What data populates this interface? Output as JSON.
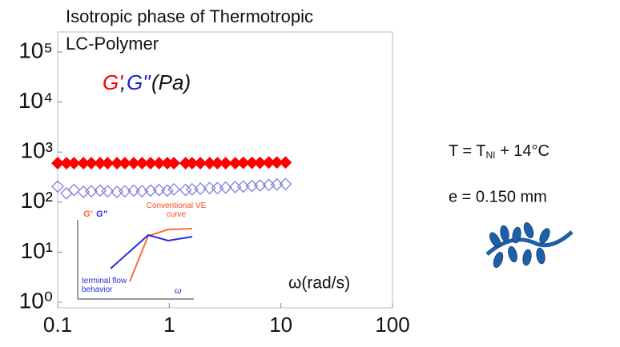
{
  "chart_data": {
    "type": "scatter",
    "title": "Isotropic phase of Thermotropic LC-Polymer",
    "ylabel": "(Pa)",
    "ylabel_separator": ",",
    "xlabel": "ω(rad/s)",
    "x_log": true,
    "y_log": true,
    "xlim": [
      0.1,
      100
    ],
    "ylim": [
      1,
      100000
    ],
    "xticks": [
      0.1,
      1,
      10,
      100
    ],
    "yticks": [
      {
        "value": 1,
        "label": "10⁰"
      },
      {
        "value": 10,
        "label": "10¹"
      },
      {
        "value": 100,
        "label": "10²"
      },
      {
        "value": 1000,
        "label": "10³"
      },
      {
        "value": 10000,
        "label": "10⁴"
      },
      {
        "value": 100000,
        "label": "10⁵"
      }
    ],
    "x": [
      0.1,
      0.12,
      0.14,
      0.17,
      0.2,
      0.24,
      0.28,
      0.34,
      0.4,
      0.48,
      0.57,
      0.68,
      0.81,
      0.96,
      1.1,
      1.4,
      1.6,
      1.9,
      2.3,
      2.7,
      3.2,
      3.9,
      4.6,
      5.5,
      6.5,
      7.8,
      9.2,
      11
    ],
    "series": [
      {
        "name": "G'",
        "color": "#ff0000",
        "filled": true,
        "values": [
          600,
          600,
          600,
          600,
          600,
          600,
          600,
          600,
          600,
          600,
          600,
          600,
          600,
          600,
          600,
          600,
          600,
          600,
          600,
          600,
          600,
          600,
          610,
          610,
          610,
          620,
          620,
          620
        ]
      },
      {
        "name": "G\"",
        "color": "#8080e0",
        "label_color": "#1f1fd0",
        "filled": false,
        "values": [
          205,
          150,
          175,
          160,
          165,
          170,
          165,
          160,
          165,
          170,
          165,
          170,
          175,
          170,
          180,
          175,
          180,
          185,
          190,
          190,
          195,
          200,
          205,
          210,
          215,
          220,
          225,
          230
        ]
      }
    ],
    "inset": {
      "series_labels": [
        "G'",
        "G\""
      ],
      "curve_label": "Conventional VE curve",
      "region_label": "terminal flow behavior",
      "xlabel": "ω"
    },
    "annotations": {
      "temperature": [
        "T = T",
        "NI",
        " + 14°C"
      ],
      "gap": "e = 0.150 mm"
    }
  }
}
